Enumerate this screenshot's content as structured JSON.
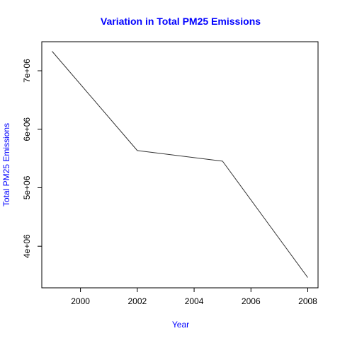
{
  "chart_data": {
    "type": "line",
    "title": "Variation in Total PM25 Emissions",
    "xlabel": "Year",
    "ylabel": "Total PM25 Emissions",
    "xlim": [
      1999,
      2008
    ],
    "ylim": [
      3464206,
      7332967
    ],
    "x_ticks": [
      2000,
      2002,
      2004,
      2006,
      2008
    ],
    "x_tick_labels": [
      "2000",
      "2002",
      "2004",
      "2006",
      "2008"
    ],
    "y_ticks": [
      4000000,
      5000000,
      6000000,
      7000000
    ],
    "y_tick_labels": [
      "4e+06",
      "5e+06",
      "6e+06",
      "7e+06"
    ],
    "grid": false,
    "legend": "none",
    "series": [
      {
        "x": [
          1999,
          2002,
          2005,
          2008
        ],
        "y": [
          7332967,
          5635780,
          5454703,
          3464206
        ],
        "color": "#333333"
      }
    ],
    "colors": {
      "title": "#0000ff",
      "axis_labels": "#0000ff",
      "ticks": "#000000",
      "line": "#333333"
    }
  }
}
